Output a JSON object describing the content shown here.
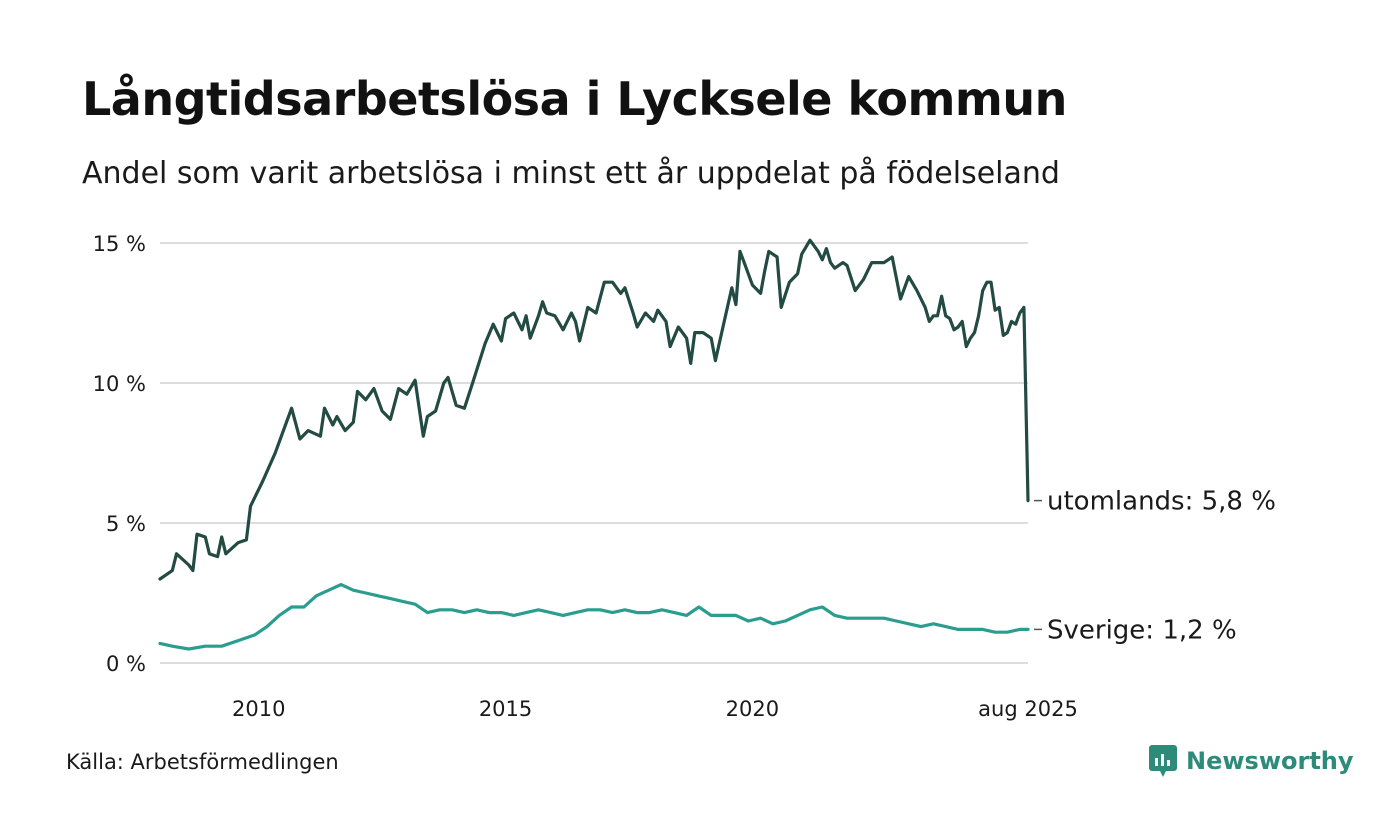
{
  "title": "Långtidsarbetslösa i Lycksele kommun",
  "subtitle": "Andel som varit arbetslösa i minst ett år uppdelat på födelseland",
  "source": "Källa: Arbetsförmedlingen",
  "brand": {
    "name": "Newsworthy",
    "icon": "newsworthy-logo-icon",
    "color": "#2e8b7a"
  },
  "colors": {
    "utomlands": "#234a43",
    "sverige": "#2a9d8f",
    "grid": "#dddddd"
  },
  "chart_data": {
    "type": "line",
    "title": "Långtidsarbetslösa i Lycksele kommun",
    "subtitle": "Andel som varit arbetslösa i minst ett år uppdelat på födelseland",
    "x_range": [
      "2008-01",
      "2025-08"
    ],
    "ylim": [
      0,
      15
    ],
    "y_ticks": [
      {
        "value": 0,
        "label": "0 %"
      },
      {
        "value": 5,
        "label": "5 %"
      },
      {
        "value": 10,
        "label": "10 %"
      },
      {
        "value": 15,
        "label": "15 %"
      }
    ],
    "x_ticks": [
      {
        "value": "2010-01",
        "label": "2010"
      },
      {
        "value": "2015-01",
        "label": "2015"
      },
      {
        "value": "2020-01",
        "label": "2020"
      },
      {
        "value": "2025-08",
        "label": "aug 2025"
      }
    ],
    "grid": true,
    "legend": "direct labels at line ends",
    "series": [
      {
        "name": "utomlands",
        "end_label": "utomlands: 5,8 %",
        "color": "#234a43",
        "points": [
          [
            "2008-01",
            3.0
          ],
          [
            "2008-04",
            3.3
          ],
          [
            "2008-05",
            3.9
          ],
          [
            "2008-08",
            3.5
          ],
          [
            "2008-09",
            3.3
          ],
          [
            "2008-10",
            4.6
          ],
          [
            "2008-12",
            4.5
          ],
          [
            "2009-01",
            3.9
          ],
          [
            "2009-03",
            3.8
          ],
          [
            "2009-04",
            4.5
          ],
          [
            "2009-05",
            3.9
          ],
          [
            "2009-08",
            4.3
          ],
          [
            "2009-10",
            4.4
          ],
          [
            "2009-11",
            5.6
          ],
          [
            "2010-02",
            6.5
          ],
          [
            "2010-05",
            7.5
          ],
          [
            "2010-07",
            8.3
          ],
          [
            "2010-09",
            9.1
          ],
          [
            "2010-11",
            8.0
          ],
          [
            "2011-01",
            8.3
          ],
          [
            "2011-04",
            8.1
          ],
          [
            "2011-05",
            9.1
          ],
          [
            "2011-07",
            8.5
          ],
          [
            "2011-08",
            8.8
          ],
          [
            "2011-10",
            8.3
          ],
          [
            "2011-12",
            8.6
          ],
          [
            "2012-01",
            9.7
          ],
          [
            "2012-03",
            9.4
          ],
          [
            "2012-05",
            9.8
          ],
          [
            "2012-07",
            9.0
          ],
          [
            "2012-09",
            8.7
          ],
          [
            "2012-11",
            9.8
          ],
          [
            "2013-01",
            9.6
          ],
          [
            "2013-03",
            10.1
          ],
          [
            "2013-05",
            8.1
          ],
          [
            "2013-06",
            8.8
          ],
          [
            "2013-08",
            9.0
          ],
          [
            "2013-10",
            10.0
          ],
          [
            "2013-11",
            10.2
          ],
          [
            "2014-01",
            9.2
          ],
          [
            "2014-03",
            9.1
          ],
          [
            "2014-05",
            10.0
          ],
          [
            "2014-08",
            11.4
          ],
          [
            "2014-10",
            12.1
          ],
          [
            "2014-12",
            11.5
          ],
          [
            "2015-01",
            12.3
          ],
          [
            "2015-03",
            12.5
          ],
          [
            "2015-05",
            11.9
          ],
          [
            "2015-06",
            12.4
          ],
          [
            "2015-07",
            11.6
          ],
          [
            "2015-09",
            12.4
          ],
          [
            "2015-10",
            12.9
          ],
          [
            "2015-11",
            12.5
          ],
          [
            "2016-01",
            12.4
          ],
          [
            "2016-03",
            11.9
          ],
          [
            "2016-05",
            12.5
          ],
          [
            "2016-06",
            12.2
          ],
          [
            "2016-07",
            11.5
          ],
          [
            "2016-09",
            12.7
          ],
          [
            "2016-11",
            12.5
          ],
          [
            "2017-01",
            13.6
          ],
          [
            "2017-03",
            13.6
          ],
          [
            "2017-05",
            13.2
          ],
          [
            "2017-06",
            13.4
          ],
          [
            "2017-08",
            12.5
          ],
          [
            "2017-09",
            12.0
          ],
          [
            "2017-11",
            12.5
          ],
          [
            "2018-01",
            12.2
          ],
          [
            "2018-02",
            12.6
          ],
          [
            "2018-04",
            12.2
          ],
          [
            "2018-05",
            11.3
          ],
          [
            "2018-07",
            12.0
          ],
          [
            "2018-09",
            11.6
          ],
          [
            "2018-10",
            10.7
          ],
          [
            "2018-11",
            11.8
          ],
          [
            "2019-01",
            11.8
          ],
          [
            "2019-03",
            11.6
          ],
          [
            "2019-04",
            10.8
          ],
          [
            "2019-06",
            12.1
          ],
          [
            "2019-08",
            13.4
          ],
          [
            "2019-09",
            12.8
          ],
          [
            "2019-10",
            14.7
          ],
          [
            "2019-11",
            14.3
          ],
          [
            "2020-01",
            13.5
          ],
          [
            "2020-03",
            13.2
          ],
          [
            "2020-04",
            14.0
          ],
          [
            "2020-05",
            14.7
          ],
          [
            "2020-07",
            14.5
          ],
          [
            "2020-08",
            12.7
          ],
          [
            "2020-10",
            13.6
          ],
          [
            "2020-12",
            13.9
          ],
          [
            "2021-01",
            14.6
          ],
          [
            "2021-03",
            15.1
          ],
          [
            "2021-05",
            14.7
          ],
          [
            "2021-06",
            14.4
          ],
          [
            "2021-07",
            14.8
          ],
          [
            "2021-08",
            14.3
          ],
          [
            "2021-09",
            14.1
          ],
          [
            "2021-11",
            14.3
          ],
          [
            "2021-12",
            14.2
          ],
          [
            "2022-02",
            13.3
          ],
          [
            "2022-04",
            13.7
          ],
          [
            "2022-06",
            14.3
          ],
          [
            "2022-09",
            14.3
          ],
          [
            "2022-11",
            14.5
          ],
          [
            "2023-01",
            13.0
          ],
          [
            "2023-03",
            13.8
          ],
          [
            "2023-05",
            13.3
          ],
          [
            "2023-07",
            12.7
          ],
          [
            "2023-08",
            12.2
          ],
          [
            "2023-09",
            12.4
          ],
          [
            "2023-10",
            12.4
          ],
          [
            "2023-11",
            13.1
          ],
          [
            "2023-12",
            12.4
          ],
          [
            "2024-01",
            12.3
          ],
          [
            "2024-02",
            11.9
          ],
          [
            "2024-03",
            12.0
          ],
          [
            "2024-04",
            12.2
          ],
          [
            "2024-05",
            11.3
          ],
          [
            "2024-06",
            11.6
          ],
          [
            "2024-07",
            11.8
          ],
          [
            "2024-08",
            12.4
          ],
          [
            "2024-09",
            13.3
          ],
          [
            "2024-10",
            13.6
          ],
          [
            "2024-11",
            13.6
          ],
          [
            "2024-12",
            12.6
          ],
          [
            "2025-01",
            12.7
          ],
          [
            "2025-02",
            11.7
          ],
          [
            "2025-03",
            11.8
          ],
          [
            "2025-04",
            12.2
          ],
          [
            "2025-05",
            12.1
          ],
          [
            "2025-06",
            12.5
          ],
          [
            "2025-07",
            12.7
          ],
          [
            "2025-08",
            5.8
          ]
        ]
      },
      {
        "name": "Sverige",
        "end_label": "Sverige: 1,2 %",
        "color": "#2a9d8f",
        "points": [
          [
            "2008-01",
            0.7
          ],
          [
            "2008-04",
            0.6
          ],
          [
            "2008-08",
            0.5
          ],
          [
            "2008-12",
            0.6
          ],
          [
            "2009-04",
            0.6
          ],
          [
            "2009-08",
            0.8
          ],
          [
            "2009-12",
            1.0
          ],
          [
            "2010-03",
            1.3
          ],
          [
            "2010-06",
            1.7
          ],
          [
            "2010-09",
            2.0
          ],
          [
            "2010-12",
            2.0
          ],
          [
            "2011-03",
            2.4
          ],
          [
            "2011-06",
            2.6
          ],
          [
            "2011-09",
            2.8
          ],
          [
            "2011-12",
            2.6
          ],
          [
            "2012-03",
            2.5
          ],
          [
            "2012-06",
            2.4
          ],
          [
            "2012-09",
            2.3
          ],
          [
            "2012-12",
            2.2
          ],
          [
            "2013-03",
            2.1
          ],
          [
            "2013-06",
            1.8
          ],
          [
            "2013-09",
            1.9
          ],
          [
            "2013-12",
            1.9
          ],
          [
            "2014-03",
            1.8
          ],
          [
            "2014-06",
            1.9
          ],
          [
            "2014-09",
            1.8
          ],
          [
            "2014-12",
            1.8
          ],
          [
            "2015-03",
            1.7
          ],
          [
            "2015-06",
            1.8
          ],
          [
            "2015-09",
            1.9
          ],
          [
            "2015-12",
            1.8
          ],
          [
            "2016-03",
            1.7
          ],
          [
            "2016-06",
            1.8
          ],
          [
            "2016-09",
            1.9
          ],
          [
            "2016-12",
            1.9
          ],
          [
            "2017-03",
            1.8
          ],
          [
            "2017-06",
            1.9
          ],
          [
            "2017-09",
            1.8
          ],
          [
            "2017-12",
            1.8
          ],
          [
            "2018-03",
            1.9
          ],
          [
            "2018-06",
            1.8
          ],
          [
            "2018-09",
            1.7
          ],
          [
            "2018-12",
            2.0
          ],
          [
            "2019-03",
            1.7
          ],
          [
            "2019-06",
            1.7
          ],
          [
            "2019-09",
            1.7
          ],
          [
            "2019-12",
            1.5
          ],
          [
            "2020-03",
            1.6
          ],
          [
            "2020-06",
            1.4
          ],
          [
            "2020-09",
            1.5
          ],
          [
            "2020-12",
            1.7
          ],
          [
            "2021-03",
            1.9
          ],
          [
            "2021-06",
            2.0
          ],
          [
            "2021-09",
            1.7
          ],
          [
            "2021-12",
            1.6
          ],
          [
            "2022-03",
            1.6
          ],
          [
            "2022-06",
            1.6
          ],
          [
            "2022-09",
            1.6
          ],
          [
            "2022-12",
            1.5
          ],
          [
            "2023-03",
            1.4
          ],
          [
            "2023-06",
            1.3
          ],
          [
            "2023-09",
            1.4
          ],
          [
            "2023-12",
            1.3
          ],
          [
            "2024-03",
            1.2
          ],
          [
            "2024-06",
            1.2
          ],
          [
            "2024-09",
            1.2
          ],
          [
            "2024-12",
            1.1
          ],
          [
            "2025-03",
            1.1
          ],
          [
            "2025-06",
            1.2
          ],
          [
            "2025-08",
            1.2
          ]
        ]
      }
    ]
  }
}
